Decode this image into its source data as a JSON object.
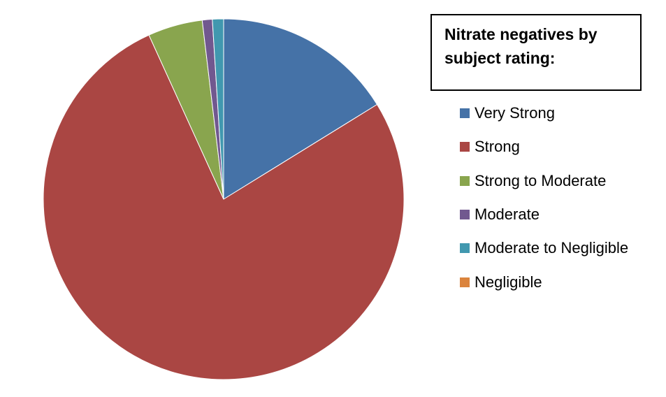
{
  "chart_data": {
    "type": "pie",
    "title": "Nitrate negatives by subject rating:",
    "categories": [
      "Very Strong",
      "Strong",
      "Strong to Moderate",
      "Moderate",
      "Moderate to Negligible",
      "Negligible"
    ],
    "values": [
      16.2,
      77,
      4.9,
      0.9,
      1,
      0
    ],
    "colors": [
      "#4572a7",
      "#aa4643",
      "#89a54e",
      "#71588f",
      "#4198af",
      "#db843d"
    ]
  }
}
